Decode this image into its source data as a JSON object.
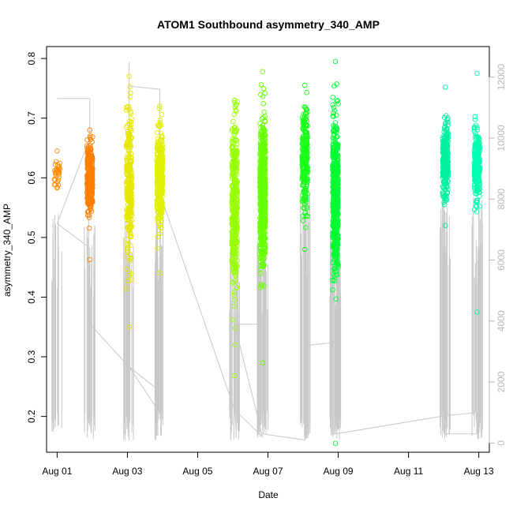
{
  "chart_data": {
    "type": "scatter",
    "title": "ATOM1 Southbound asymmetry_340_AMP",
    "xlabel": "Date",
    "ylabel": "asymmetry_340_AMP",
    "xlim": [
      -0.3,
      12.3
    ],
    "ylim": [
      0.14,
      0.82
    ],
    "y2lim": [
      -300,
      13000
    ],
    "x_ticks": [
      0,
      2,
      4,
      6,
      8,
      10,
      12
    ],
    "x_tick_labels": [
      "Aug 01",
      "Aug 03",
      "Aug 05",
      "Aug 07",
      "Aug 09",
      "Aug 11",
      "Aug 13"
    ],
    "y_ticks": [
      0.2,
      0.3,
      0.4,
      0.5,
      0.6,
      0.7,
      0.8
    ],
    "y_tick_labels": [
      "0.2",
      "0.3",
      "0.4",
      "0.5",
      "0.6",
      "0.7",
      "0.8"
    ],
    "y2_ticks": [
      0,
      2000,
      4000,
      6000,
      8000,
      10000,
      12000
    ],
    "y2_tick_labels": [
      "0",
      "2000",
      "4000",
      "6000",
      "8000",
      "10000",
      "12000"
    ],
    "line_color": "#c8c8c8",
    "clusters": [
      {
        "x": 0.0,
        "center": 0.61,
        "spread": 0.012,
        "min": 0.583,
        "max": 0.645,
        "n": 30,
        "color": "#ff8c00"
      },
      {
        "x": 0.93,
        "center": 0.6,
        "spread": 0.028,
        "min": 0.463,
        "max": 0.68,
        "n": 320,
        "color": "#ff7f00"
      },
      {
        "x": 2.05,
        "center": 0.59,
        "spread": 0.06,
        "min": 0.35,
        "max": 0.77,
        "n": 260,
        "color": "#e6e600"
      },
      {
        "x": 2.92,
        "center": 0.6,
        "spread": 0.04,
        "min": 0.44,
        "max": 0.72,
        "n": 380,
        "color": "#e0f000"
      },
      {
        "x": 5.05,
        "center": 0.55,
        "spread": 0.07,
        "min": 0.268,
        "max": 0.73,
        "n": 420,
        "color": "#99ff00"
      },
      {
        "x": 5.85,
        "center": 0.57,
        "spread": 0.06,
        "min": 0.29,
        "max": 0.778,
        "n": 640,
        "color": "#66ff00"
      },
      {
        "x": 7.05,
        "center": 0.63,
        "spread": 0.04,
        "min": 0.48,
        "max": 0.755,
        "n": 300,
        "color": "#1aff1a"
      },
      {
        "x": 7.92,
        "center": 0.57,
        "spread": 0.06,
        "min": 0.155,
        "max": 0.795,
        "n": 620,
        "color": "#00ff33"
      },
      {
        "x": 11.05,
        "center": 0.63,
        "spread": 0.03,
        "min": 0.52,
        "max": 0.752,
        "n": 260,
        "color": "#00f0a0"
      },
      {
        "x": 11.95,
        "center": 0.62,
        "spread": 0.03,
        "min": 0.375,
        "max": 0.775,
        "n": 260,
        "color": "#00ffb0"
      }
    ],
    "index_line": [
      [
        0.0,
        11300
      ],
      [
        0.93,
        11300
      ],
      [
        0.93,
        10000
      ],
      [
        0.0,
        7200
      ],
      [
        0.93,
        6400
      ],
      [
        0.93,
        5800
      ],
      [
        0.93,
        3900
      ],
      [
        2.05,
        2500
      ],
      [
        2.05,
        12500
      ],
      [
        2.05,
        11700
      ],
      [
        2.92,
        11600
      ],
      [
        2.92,
        1000
      ],
      [
        2.05,
        2500
      ],
      [
        2.92,
        1700
      ],
      [
        2.92,
        8200
      ],
      [
        5.05,
        1100
      ],
      [
        5.85,
        200
      ],
      [
        5.05,
        3900
      ],
      [
        5.85,
        3900
      ],
      [
        5.85,
        300
      ],
      [
        7.05,
        100
      ],
      [
        7.05,
        3200
      ],
      [
        7.92,
        3300
      ],
      [
        7.92,
        300
      ],
      [
        11.05,
        900
      ],
      [
        11.95,
        1000
      ],
      [
        11.95,
        300
      ],
      [
        11.05,
        300
      ]
    ]
  }
}
